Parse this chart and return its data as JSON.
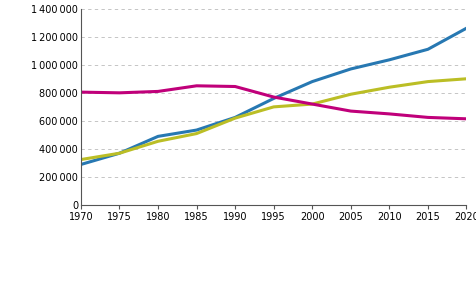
{
  "years": [
    1970,
    1975,
    1980,
    1985,
    1990,
    1995,
    2000,
    2005,
    2010,
    2015,
    2020
  ],
  "henk1": [
    290000,
    370000,
    490000,
    535000,
    625000,
    760000,
    880000,
    970000,
    1035000,
    1110000,
    1260000
  ],
  "henk2": [
    325000,
    370000,
    455000,
    510000,
    620000,
    700000,
    720000,
    790000,
    840000,
    880000,
    900000
  ],
  "henk3plus": [
    805000,
    800000,
    810000,
    850000,
    845000,
    770000,
    720000,
    670000,
    650000,
    625000,
    615000
  ],
  "color1": "#2778B2",
  "color2": "#BBBE25",
  "color3": "#C0007A",
  "ylim": [
    0,
    1400000
  ],
  "yticks": [
    0,
    200000,
    400000,
    600000,
    800000,
    1000000,
    1200000,
    1400000
  ],
  "xticks": [
    1970,
    1975,
    1980,
    1985,
    1990,
    1995,
    2000,
    2005,
    2010,
    2015,
    2020
  ],
  "linewidth": 2.2,
  "grid_color": "#BBBBBB",
  "grid_style": "--"
}
